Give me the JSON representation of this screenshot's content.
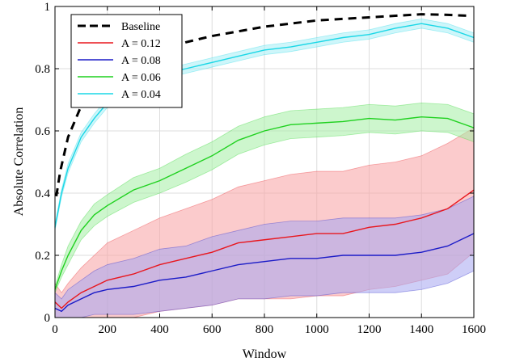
{
  "chart_data": {
    "type": "line",
    "title": "",
    "xlabel": "Window",
    "ylabel": "Absolute Correlation",
    "xlim": [
      0,
      1600
    ],
    "ylim": [
      0,
      1
    ],
    "xticks": [
      0,
      200,
      400,
      600,
      800,
      1000,
      1200,
      1400,
      1600
    ],
    "yticks": [
      0,
      0.2,
      0.4,
      0.6,
      0.8,
      1
    ],
    "xtick_labels": [
      "0",
      "200",
      "400",
      "600",
      "800",
      "1000",
      "1200",
      "1400",
      "1600"
    ],
    "ytick_labels": [
      "0",
      "0.2",
      "0.4",
      "0.6",
      "0.8",
      "1"
    ],
    "grid": true,
    "legend_position": "top-left",
    "series": [
      {
        "name": "Baseline",
        "color": "#000000",
        "style": "dashed",
        "x": [
          5,
          20,
          50,
          100,
          150,
          200,
          300,
          400,
          500,
          600,
          700,
          800,
          900,
          1000,
          1100,
          1200,
          1300,
          1400,
          1500,
          1580
        ],
        "y": [
          0.39,
          0.47,
          0.58,
          0.68,
          0.74,
          0.78,
          0.83,
          0.86,
          0.885,
          0.905,
          0.92,
          0.935,
          0.945,
          0.955,
          0.96,
          0.965,
          0.97,
          0.975,
          0.973,
          0.97
        ],
        "band": null
      },
      {
        "name": "A = 0.12",
        "color": "#e8161d",
        "band_color": "#f7a1a3",
        "x": [
          0,
          25,
          50,
          100,
          150,
          200,
          300,
          400,
          500,
          600,
          700,
          800,
          900,
          1000,
          1100,
          1200,
          1300,
          1400,
          1500,
          1600
        ],
        "y": [
          0.05,
          0.03,
          0.05,
          0.08,
          0.1,
          0.12,
          0.14,
          0.17,
          0.19,
          0.21,
          0.24,
          0.25,
          0.26,
          0.27,
          0.27,
          0.29,
          0.3,
          0.32,
          0.35,
          0.41
        ],
        "band": [
          0.06,
          0.05,
          0.06,
          0.08,
          0.1,
          0.12,
          0.14,
          0.15,
          0.16,
          0.17,
          0.18,
          0.19,
          0.2,
          0.2,
          0.2,
          0.2,
          0.2,
          0.2,
          0.21,
          0.2
        ]
      },
      {
        "name": "A = 0.08",
        "color": "#1b1bc7",
        "band_color": "#a5a6f0",
        "x": [
          0,
          25,
          50,
          100,
          150,
          200,
          300,
          400,
          500,
          600,
          700,
          800,
          900,
          1000,
          1100,
          1200,
          1300,
          1400,
          1500,
          1600
        ],
        "y": [
          0.03,
          0.02,
          0.04,
          0.06,
          0.08,
          0.09,
          0.1,
          0.12,
          0.13,
          0.15,
          0.17,
          0.18,
          0.19,
          0.19,
          0.2,
          0.2,
          0.2,
          0.21,
          0.23,
          0.27
        ],
        "band": [
          0.05,
          0.04,
          0.05,
          0.06,
          0.07,
          0.08,
          0.09,
          0.1,
          0.1,
          0.11,
          0.11,
          0.12,
          0.12,
          0.12,
          0.12,
          0.12,
          0.12,
          0.12,
          0.12,
          0.12
        ]
      },
      {
        "name": "A = 0.06",
        "color": "#1fd11f",
        "band_color": "#a4eea4",
        "x": [
          0,
          25,
          50,
          100,
          150,
          200,
          300,
          400,
          500,
          600,
          700,
          800,
          900,
          1000,
          1100,
          1200,
          1300,
          1400,
          1500,
          1600
        ],
        "y": [
          0.09,
          0.15,
          0.2,
          0.28,
          0.33,
          0.36,
          0.41,
          0.44,
          0.48,
          0.52,
          0.57,
          0.6,
          0.62,
          0.625,
          0.63,
          0.64,
          0.635,
          0.645,
          0.64,
          0.61
        ],
        "band": [
          0.01,
          0.02,
          0.03,
          0.03,
          0.035,
          0.035,
          0.04,
          0.04,
          0.045,
          0.045,
          0.045,
          0.045,
          0.045,
          0.045,
          0.045,
          0.045,
          0.045,
          0.045,
          0.045,
          0.045
        ]
      },
      {
        "name": "A = 0.04",
        "color": "#1ad7e6",
        "band_color": "#a6eff5",
        "x": [
          0,
          25,
          50,
          100,
          150,
          200,
          300,
          400,
          500,
          600,
          700,
          800,
          900,
          1000,
          1100,
          1200,
          1300,
          1400,
          1500,
          1600
        ],
        "y": [
          0.29,
          0.4,
          0.48,
          0.58,
          0.64,
          0.69,
          0.74,
          0.78,
          0.8,
          0.82,
          0.84,
          0.86,
          0.87,
          0.885,
          0.9,
          0.91,
          0.93,
          0.945,
          0.93,
          0.9
        ],
        "band": [
          0.01,
          0.012,
          0.015,
          0.015,
          0.015,
          0.015,
          0.015,
          0.015,
          0.015,
          0.015,
          0.015,
          0.015,
          0.015,
          0.015,
          0.015,
          0.015,
          0.015,
          0.015,
          0.015,
          0.015
        ]
      }
    ]
  }
}
